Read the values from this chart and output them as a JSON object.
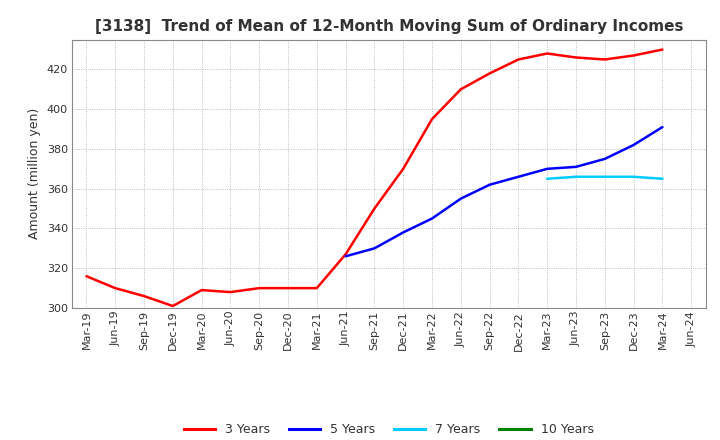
{
  "title": "[3138]  Trend of Mean of 12-Month Moving Sum of Ordinary Incomes",
  "ylabel": "Amount (million yen)",
  "ylim": [
    300,
    435
  ],
  "yticks": [
    300,
    320,
    340,
    360,
    380,
    400,
    420
  ],
  "background_color": "#ffffff",
  "grid_color": "#aaaaaa",
  "legend_labels": [
    "3 Years",
    "5 Years",
    "7 Years",
    "10 Years"
  ],
  "legend_colors": [
    "#ff0000",
    "#0000ff",
    "#00ccff",
    "#008000"
  ],
  "x_labels": [
    "Mar-19",
    "Jun-19",
    "Sep-19",
    "Dec-19",
    "Mar-20",
    "Jun-20",
    "Sep-20",
    "Dec-20",
    "Mar-21",
    "Jun-21",
    "Sep-21",
    "Dec-21",
    "Mar-22",
    "Jun-22",
    "Sep-22",
    "Dec-22",
    "Mar-23",
    "Jun-23",
    "Sep-23",
    "Dec-23",
    "Mar-24",
    "Jun-24"
  ],
  "series_3y": [
    316,
    310,
    306,
    301,
    309,
    308,
    310,
    310,
    310,
    327,
    350,
    370,
    395,
    410,
    418,
    425,
    428,
    426,
    425,
    427,
    430,
    null
  ],
  "series_5y": [
    null,
    null,
    null,
    null,
    null,
    null,
    null,
    null,
    null,
    326,
    330,
    338,
    345,
    355,
    362,
    366,
    370,
    371,
    375,
    382,
    391,
    null
  ],
  "series_7y": [
    null,
    null,
    null,
    null,
    null,
    null,
    null,
    null,
    null,
    null,
    null,
    null,
    null,
    null,
    null,
    null,
    365,
    366,
    366,
    366,
    365,
    null
  ],
  "series_10y": [
    null,
    null,
    null,
    null,
    null,
    null,
    null,
    null,
    null,
    null,
    null,
    null,
    null,
    null,
    null,
    null,
    null,
    null,
    null,
    null,
    null,
    null
  ],
  "title_color": "#333333",
  "title_fontsize": 11,
  "tick_fontsize": 8,
  "ylabel_fontsize": 9
}
